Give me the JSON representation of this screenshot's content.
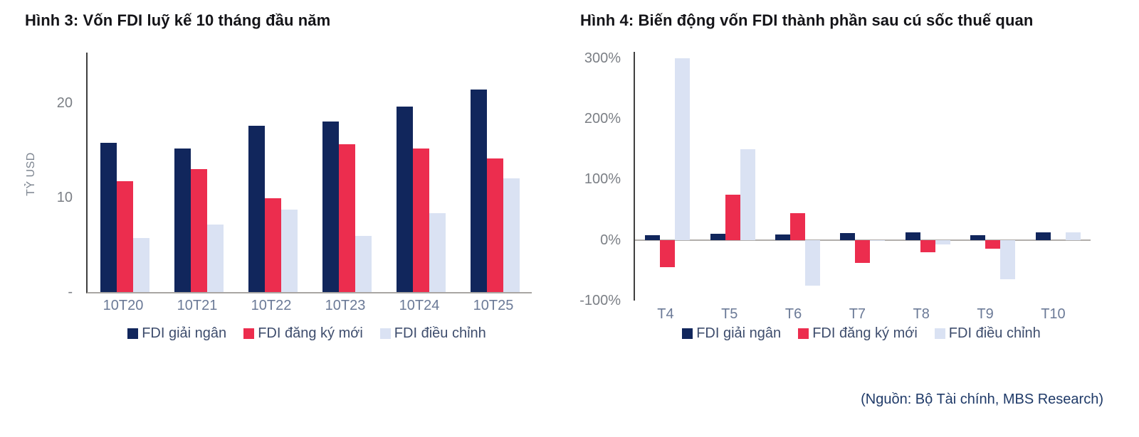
{
  "source_note": "(Nguồn: Bộ Tài chính, MBS Research)",
  "colors": {
    "series_navy": "#11265c",
    "series_red": "#ec2d4e",
    "series_light_blue": "#dae2f3",
    "axis_line": "#3f3f3f",
    "baseline": "#a9a6a3",
    "tick_text": "#7b7f85",
    "category_text": "#6b7a97",
    "legend_text": "#3e4d6d",
    "title_text": "#141418",
    "source_text": "#1f3a68"
  },
  "chart_data": [
    {
      "type": "bar",
      "title": "Hình 3: Vốn FDI luỹ kế 10 tháng đầu năm",
      "xlabel": "",
      "ylabel": "TỶ USD",
      "categories": [
        "10T20",
        "10T21",
        "10T22",
        "10T23",
        "10T24",
        "10T25"
      ],
      "series": [
        {
          "name": "FDI giải ngân",
          "color": "#11265c",
          "values": [
            15.8,
            15.2,
            17.6,
            18.0,
            19.6,
            21.4
          ]
        },
        {
          "name": "FDI đăng ký mới",
          "color": "#ec2d4e",
          "values": [
            11.7,
            13.0,
            9.9,
            15.6,
            15.2,
            14.1
          ]
        },
        {
          "name": "FDI điều chỉnh",
          "color": "#dae2f3",
          "values": [
            5.7,
            7.1,
            8.7,
            5.9,
            8.3,
            12.0
          ]
        }
      ],
      "ylim": [
        0,
        25.3
      ],
      "yticks": [
        {
          "value": 20,
          "label": "20"
        },
        {
          "value": 10,
          "label": "10"
        },
        {
          "value": 0,
          "label": "-"
        }
      ],
      "grid": false,
      "legend_position": "bottom"
    },
    {
      "type": "bar",
      "title": "Hình 4: Biến động vốn FDI thành phần sau cú sốc thuế quan",
      "xlabel": "",
      "ylabel": "",
      "categories": [
        "T4",
        "T5",
        "T6",
        "T7",
        "T8",
        "T9",
        "T10"
      ],
      "series": [
        {
          "name": "FDI giải ngân",
          "color": "#11265c",
          "values": [
            8,
            10,
            9,
            11,
            13,
            8,
            12
          ]
        },
        {
          "name": "FDI đăng ký mới",
          "color": "#ec2d4e",
          "values": [
            -45,
            75,
            44,
            -38,
            -20,
            -14,
            0
          ]
        },
        {
          "name": "FDI điều chỉnh",
          "color": "#dae2f3",
          "values": [
            300,
            150,
            -75,
            -2,
            -8,
            -65,
            13
          ]
        }
      ],
      "ylim": [
        -100,
        310
      ],
      "yticks": [
        {
          "value": 300,
          "label": "300%"
        },
        {
          "value": 200,
          "label": "200%"
        },
        {
          "value": 100,
          "label": "100%"
        },
        {
          "value": 0,
          "label": "0%"
        },
        {
          "value": -100,
          "label": "-100%"
        }
      ],
      "grid": false,
      "legend_position": "bottom"
    }
  ]
}
